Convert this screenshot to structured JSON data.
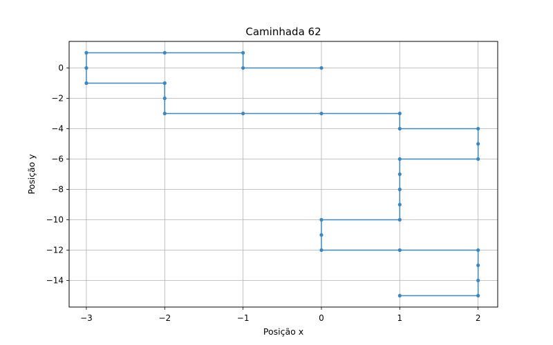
{
  "chart_data": {
    "type": "line",
    "title": "Caminhada 62",
    "xlabel": "Posição x",
    "ylabel": "Posição y",
    "xlim": [
      -3.22,
      2.25
    ],
    "ylim": [
      -15.75,
      1.75
    ],
    "xticks": [
      -3,
      -2,
      -1,
      0,
      1,
      2
    ],
    "yticks": [
      0,
      -2,
      -4,
      -6,
      -8,
      -10,
      -12,
      -14
    ],
    "grid": true,
    "legend": "none",
    "series": [
      {
        "color": "#3a87c3",
        "marker": "circle",
        "x": [
          0,
          -1,
          -1,
          -2,
          -3,
          -3,
          -3,
          -2,
          -2,
          -2,
          -1,
          0,
          1,
          1,
          2,
          2,
          2,
          1,
          1,
          1,
          1,
          1,
          0,
          0,
          0,
          1,
          2,
          2,
          2,
          2,
          1
        ],
        "y": [
          0,
          0,
          1,
          1,
          1,
          0,
          -1,
          -1,
          -2,
          -3,
          -3,
          -3,
          -3,
          -4,
          -4,
          -5,
          -6,
          -6,
          -7,
          -8,
          -9,
          -10,
          -10,
          -11,
          -12,
          -12,
          -12,
          -13,
          -14,
          -15,
          -15
        ]
      }
    ]
  }
}
